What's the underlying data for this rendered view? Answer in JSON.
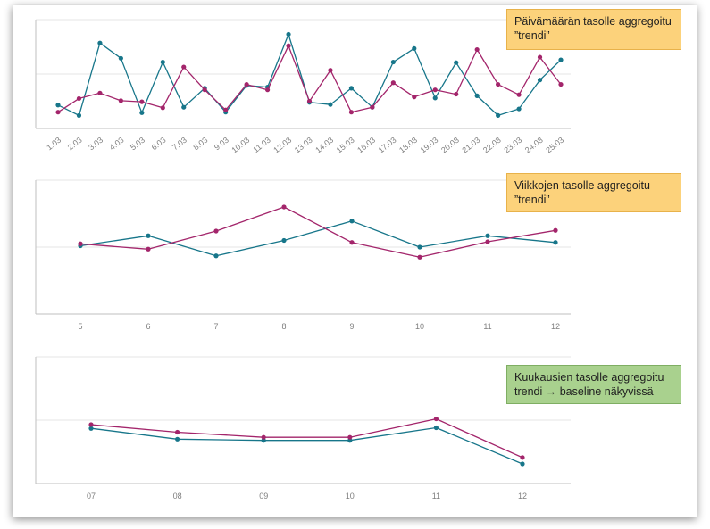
{
  "colors": {
    "teal": "#17768a",
    "magenta": "#a3256b",
    "axis": "#bfbfbf",
    "grid": "#e6e6e6"
  },
  "notes": {
    "daily": "Päivämäärän tasolle aggregoitu ”trendi”",
    "weekly": "Viikkojen tasolle aggregoitu ”trendi”",
    "monthly": "Kuukausien tasolle aggregoitu trendi → baseline näkyvissä"
  },
  "chart_data": [
    {
      "type": "line",
      "categories": [
        "1.03",
        "2.03",
        "3.03",
        "4.03",
        "5.03",
        "6.03",
        "7.03",
        "8.03",
        "9.03",
        "10.03",
        "11.03",
        "12.03",
        "13.03",
        "14.03",
        "15.03",
        "16.03",
        "17.03",
        "18.03",
        "19.03",
        "20.03",
        "21.03",
        "22.03",
        "23.03",
        "24.03",
        "25.03"
      ],
      "ylim": [
        0,
        2
      ],
      "grid": true,
      "series": [
        {
          "color": "#17768a",
          "values": [
            0.43,
            0.24,
            1.57,
            1.29,
            0.29,
            1.22,
            0.39,
            0.74,
            0.3,
            0.79,
            0.76,
            1.73,
            0.48,
            0.44,
            0.74,
            0.39,
            1.22,
            1.47,
            0.56,
            1.21,
            0.6,
            0.24,
            0.36,
            0.89,
            1.26
          ]
        },
        {
          "color": "#a3256b",
          "values": [
            0.3,
            0.55,
            0.65,
            0.51,
            0.49,
            0.38,
            1.13,
            0.71,
            0.34,
            0.81,
            0.71,
            1.52,
            0.5,
            1.07,
            0.3,
            0.39,
            0.84,
            0.58,
            0.71,
            0.63,
            1.45,
            0.81,
            0.62,
            1.31,
            0.81
          ]
        }
      ]
    },
    {
      "type": "line",
      "categories": [
        "5",
        "6",
        "7",
        "8",
        "9",
        "10",
        "11",
        "12"
      ],
      "ylim": [
        0,
        2
      ],
      "grid": true,
      "series": [
        {
          "color": "#17768a",
          "values": [
            1.02,
            1.17,
            0.87,
            1.1,
            1.39,
            1.0,
            1.17,
            1.07
          ]
        },
        {
          "color": "#a3256b",
          "values": [
            1.05,
            0.97,
            1.24,
            1.6,
            1.07,
            0.85,
            1.08,
            1.25
          ]
        }
      ]
    },
    {
      "type": "line",
      "categories": [
        "07",
        "08",
        "09",
        "10",
        "11",
        "12"
      ],
      "ylim": [
        0,
        2
      ],
      "grid": true,
      "series": [
        {
          "color": "#17768a",
          "values": [
            0.87,
            0.7,
            0.68,
            0.68,
            0.88,
            0.31
          ]
        },
        {
          "color": "#a3256b",
          "values": [
            0.93,
            0.81,
            0.73,
            0.73,
            1.02,
            0.41
          ]
        }
      ]
    }
  ]
}
